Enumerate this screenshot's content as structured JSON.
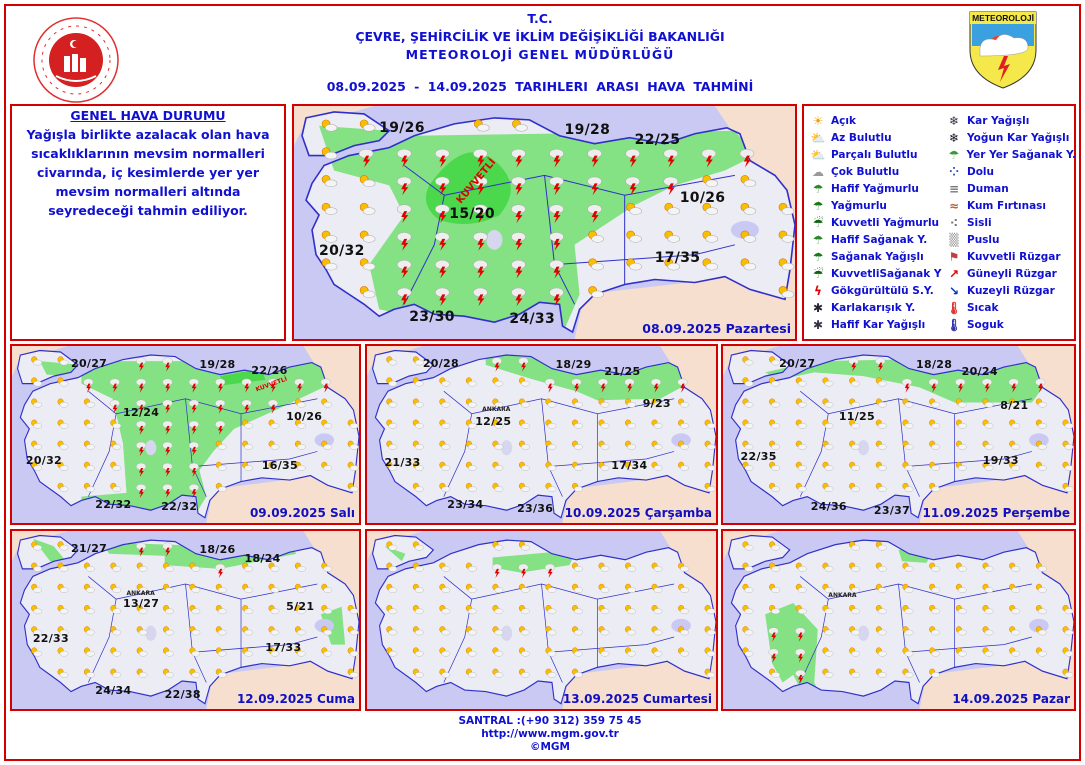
{
  "header": {
    "tc": "T.C.",
    "ministry": "ÇEVRE, ŞEHİRCİLİK VE İKLİM DEĞİŞİKLİĞİ BAKANLIĞI",
    "directorate": "METEOROLOJİ  GENEL  MÜDÜRLÜĞÜ",
    "title": "08.09.2025  -  14.09.2025   TARIHLERI  ARASI  HAVA  TAHMİNİ"
  },
  "logos": {
    "right_text": "METEOROLOJİ"
  },
  "general": {
    "heading": "GENEL HAVA DURUMU",
    "text": "Yağışla birlikte azalacak olan hava sıcaklıklarının mevsim normalleri civarında, iç kesimlerde yer  yer mevsim normalleri altında seyredeceği tahmin ediliyor."
  },
  "colors": {
    "text_blue": "#1010d0",
    "border_red": "#d40000",
    "sea": "#c9c9f3",
    "land": "#ececf4",
    "rain_area": "#84e184",
    "strong_area": "#4cd84c",
    "neighbor": "#f6dfcf"
  },
  "maps": [
    {
      "date": "08.09.2025 Pazartesi",
      "strong_label": "KUVVETLİ",
      "temps": [
        "19/26",
        "19/28",
        "22/25",
        "10/26",
        "15/20",
        "20/32",
        "17/35",
        "23/30",
        "24/33"
      ]
    },
    {
      "date": "09.09.2025 Salı",
      "strong_label": "KUVVETLİ",
      "temps": [
        "20/27",
        "19/28",
        "22/26",
        "12/24",
        "10/26",
        "20/32",
        "16/35",
        "22/32",
        "22/32"
      ]
    },
    {
      "date": "10.09.2025 Çarşamba",
      "temps": [
        "20/28",
        "18/29",
        "21/25",
        "12/25",
        "9/23",
        "21/33",
        "17/34",
        "23/34",
        "23/36"
      ],
      "city": "ANKARA"
    },
    {
      "date": "11.09.2025 Perşembe",
      "temps": [
        "20/27",
        "18/28",
        "20/24",
        "11/25",
        "8/21",
        "22/35",
        "19/33",
        "24/36",
        "23/37"
      ]
    },
    {
      "date": "12.09.2025 Cuma",
      "temps": [
        "21/27",
        "18/26",
        "18/24",
        "13/27",
        "5/21",
        "22/33",
        "17/33",
        "24/34",
        "22/38"
      ],
      "city": "ANKARA"
    },
    {
      "date": "13.09.2025 Cumartesi",
      "temps": []
    },
    {
      "date": "14.09.2025 Pazar",
      "temps": [],
      "city": "ANKARA"
    }
  ],
  "legend": {
    "items": [
      {
        "label": "Açık",
        "icon": "sun-icon"
      },
      {
        "label": "Az Bulutlu",
        "icon": "sun-cloud-icon"
      },
      {
        "label": "Parçalı Bulutlu",
        "icon": "partly-cloudy-icon"
      },
      {
        "label": "Çok Bulutlu",
        "icon": "cloud-icon"
      },
      {
        "label": "Hafif Yağmurlu",
        "icon": "light-rain-icon"
      },
      {
        "label": "Yağmurlu",
        "icon": "rain-icon"
      },
      {
        "label": "Kuvvetli Yağmurlu",
        "icon": "heavy-rain-icon"
      },
      {
        "label": "Hafif Sağanak Y.",
        "icon": "light-shower-icon"
      },
      {
        "label": "Sağanak Yağışlı",
        "icon": "shower-icon"
      },
      {
        "label": "KuvvetliSağanak Y",
        "icon": "heavy-shower-icon"
      },
      {
        "label": "Gökgürültülü S.Y.",
        "icon": "thunderstorm-icon"
      },
      {
        "label": "Karlakarışık Y.",
        "icon": "sleet-icon"
      },
      {
        "label": "Hafif Kar Yağışlı",
        "icon": "light-snow-icon"
      },
      {
        "label": "Kar Yağışlı",
        "icon": "snow-icon"
      },
      {
        "label": "Yoğun Kar Yağışlı",
        "icon": "heavy-snow-icon"
      },
      {
        "label": "Yer Yer Sağanak Y.",
        "icon": "scattered-shower-icon"
      },
      {
        "label": "Dolu",
        "icon": "hail-icon"
      },
      {
        "label": "Duman",
        "icon": "smoke-icon"
      },
      {
        "label": "Kum Fırtınası",
        "icon": "sandstorm-icon"
      },
      {
        "label": "Sisli",
        "icon": "fog-icon"
      },
      {
        "label": "Puslu",
        "icon": "haze-icon"
      },
      {
        "label": "Kuvvetli Rüzgar",
        "icon": "strong-wind-icon"
      },
      {
        "label": "Güneyli Rüzgar",
        "icon": "south-wind-arrow-icon"
      },
      {
        "label": "Kuzeyli Rüzgar",
        "icon": "north-wind-arrow-icon"
      },
      {
        "label": "Sıcak",
        "icon": "hot-thermometer-icon"
      },
      {
        "label": "Soguk",
        "icon": "cold-thermometer-icon"
      }
    ]
  },
  "footer": {
    "phone": "SANTRAL :(+90 312) 359 75 45",
    "url": "http://www.mgm.gov.tr",
    "copyright": "©MGM"
  }
}
